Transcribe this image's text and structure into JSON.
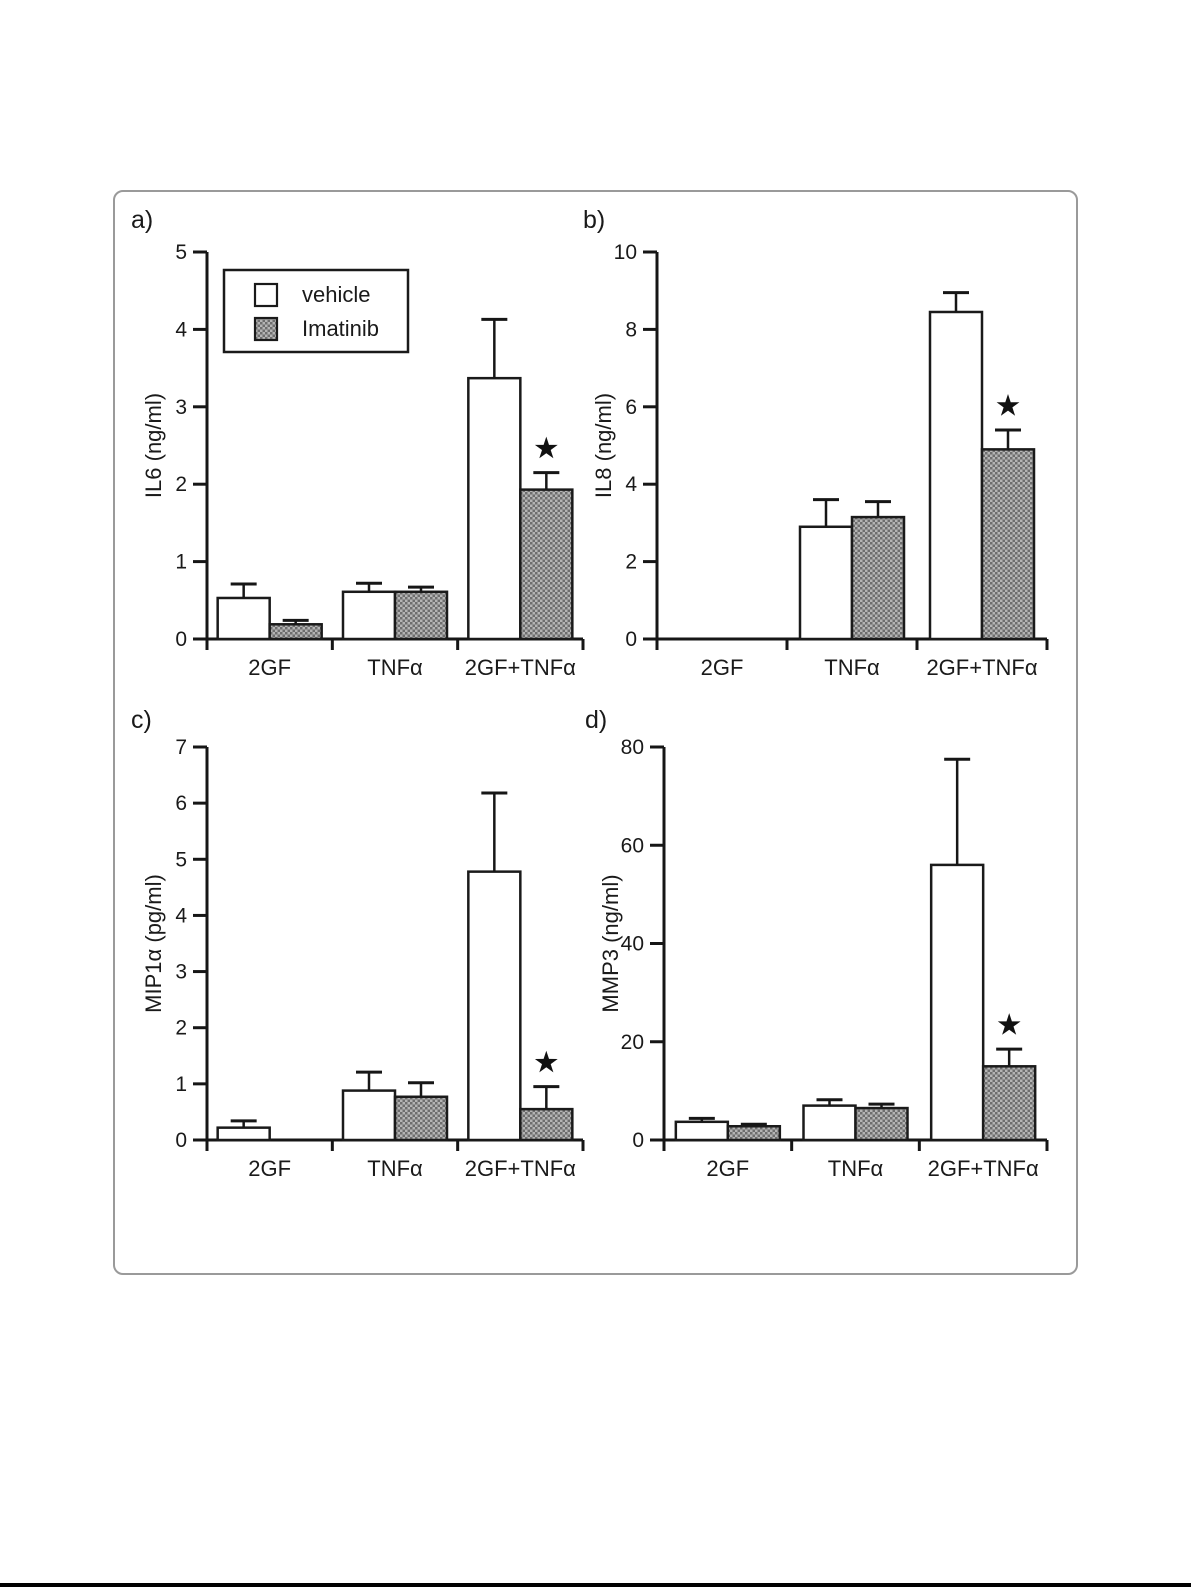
{
  "legend": {
    "items": [
      {
        "label": "vehicle",
        "swatch": "white"
      },
      {
        "label": "Imatinib",
        "swatch": "checkered-gray"
      }
    ]
  },
  "colors": {
    "axis": "#161616",
    "text": "#1a1a1a",
    "bar_vehicle_fill": "#ffffff",
    "bar_stroke": "#1a1a1a",
    "pattern_base": "#b4b4b4",
    "pattern_dark": "#6e6e6e",
    "figure_border": "#9a9a9a",
    "significance": "#111111"
  },
  "chart_data": [
    {
      "type": "bar",
      "panel": "a)",
      "ylabel": "IL6 (ng/ml)",
      "ylim": [
        0,
        5
      ],
      "yticks": [
        0,
        1,
        2,
        3,
        4,
        5
      ],
      "categories": [
        "2GF",
        "TNFα",
        "2GF+TNFα"
      ],
      "series": [
        {
          "name": "vehicle",
          "values": [
            0.53,
            0.61,
            3.37
          ],
          "errors": [
            0.18,
            0.11,
            0.76
          ]
        },
        {
          "name": "Imatinib",
          "values": [
            0.19,
            0.61,
            1.93
          ],
          "errors": [
            0.05,
            0.06,
            0.22
          ]
        }
      ],
      "significance": [
        {
          "category_index": 2,
          "series_index": 1,
          "marker": "*"
        }
      ],
      "legend_position": "top-left-inside",
      "grid": false
    },
    {
      "type": "bar",
      "panel": "b)",
      "ylabel": "IL8 (ng/ml)",
      "ylim": [
        0,
        10
      ],
      "yticks": [
        0,
        2,
        4,
        6,
        8,
        10
      ],
      "categories": [
        "2GF",
        "TNFα",
        "2GF+TNFα"
      ],
      "series": [
        {
          "name": "vehicle",
          "values": [
            0,
            2.9,
            8.45
          ],
          "errors": [
            0,
            0.7,
            0.5
          ]
        },
        {
          "name": "Imatinib",
          "values": [
            0,
            3.15,
            4.9
          ],
          "errors": [
            0,
            0.4,
            0.5
          ]
        }
      ],
      "significance": [
        {
          "category_index": 2,
          "series_index": 1,
          "marker": "*"
        }
      ],
      "legend_position": "none",
      "grid": false
    },
    {
      "type": "bar",
      "panel": "c)",
      "ylabel": "MIP1α (pg/ml)",
      "ylim": [
        0,
        7
      ],
      "yticks": [
        0,
        1,
        2,
        3,
        4,
        5,
        6,
        7
      ],
      "categories": [
        "2GF",
        "TNFα",
        "2GF+TNFα"
      ],
      "series": [
        {
          "name": "vehicle",
          "values": [
            0.22,
            0.88,
            4.78
          ],
          "errors": [
            0.12,
            0.33,
            1.4
          ]
        },
        {
          "name": "Imatinib",
          "values": [
            0,
            0.77,
            0.55
          ],
          "errors": [
            0,
            0.25,
            0.4
          ]
        }
      ],
      "significance": [
        {
          "category_index": 2,
          "series_index": 1,
          "marker": "*"
        }
      ],
      "legend_position": "none",
      "grid": false
    },
    {
      "type": "bar",
      "panel": "d)",
      "ylabel": "MMP3 (ng/ml)",
      "ylim": [
        0,
        80
      ],
      "yticks": [
        0,
        20,
        40,
        60,
        80
      ],
      "categories": [
        "2GF",
        "TNFα",
        "2GF+TNFα"
      ],
      "series": [
        {
          "name": "vehicle",
          "values": [
            3.7,
            7.0,
            56.0
          ],
          "errors": [
            0.7,
            1.2,
            21.5
          ]
        },
        {
          "name": "Imatinib",
          "values": [
            2.8,
            6.5,
            15.0
          ],
          "errors": [
            0.4,
            0.8,
            3.5
          ]
        }
      ],
      "significance": [
        {
          "category_index": 2,
          "series_index": 1,
          "marker": "*"
        }
      ],
      "legend_position": "none",
      "grid": false
    }
  ]
}
